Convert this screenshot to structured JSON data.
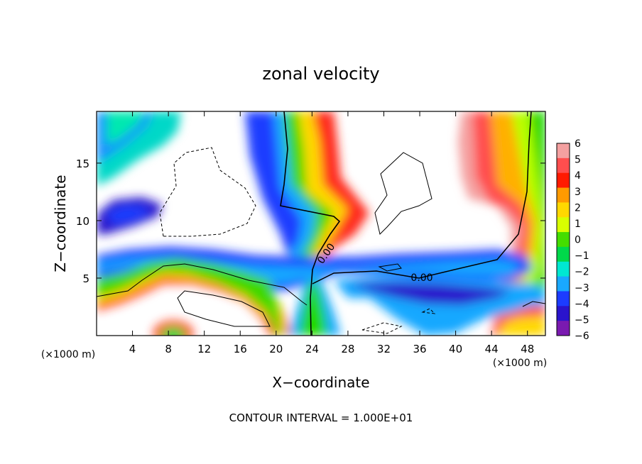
{
  "chart_data": {
    "type": "heatmap",
    "title": "zonal velocity",
    "xlabel": "X−coordinate",
    "ylabel": "Z−coordinate",
    "x_unit": "(×1000 m)",
    "z_unit": "(×1000 m)",
    "xlim": [
      0,
      50
    ],
    "ylim": [
      0,
      19.5
    ],
    "x_ticks": [
      4,
      8,
      12,
      16,
      20,
      24,
      28,
      32,
      36,
      40,
      44,
      48
    ],
    "y_ticks": [
      5,
      10,
      15
    ],
    "colorbar": {
      "ticks": [
        "6",
        "5",
        "4",
        "3",
        "2",
        "1",
        "0",
        "−1",
        "−2",
        "−3",
        "−4",
        "−5",
        "−6"
      ],
      "colors": [
        "#f4a0a0",
        "#ff4e4e",
        "#ff1a00",
        "#ff9a00",
        "#ffd800",
        "#d8ff00",
        "#44dd00",
        "#00d84a",
        "#00e8d2",
        "#19a8ff",
        "#1c3cff",
        "#2a14cc",
        "#7a1ab0"
      ]
    },
    "contour_labels": [
      "0.00",
      "0.00"
    ],
    "footer": "CONTOUR INTERVAL = 1.000E+01"
  }
}
